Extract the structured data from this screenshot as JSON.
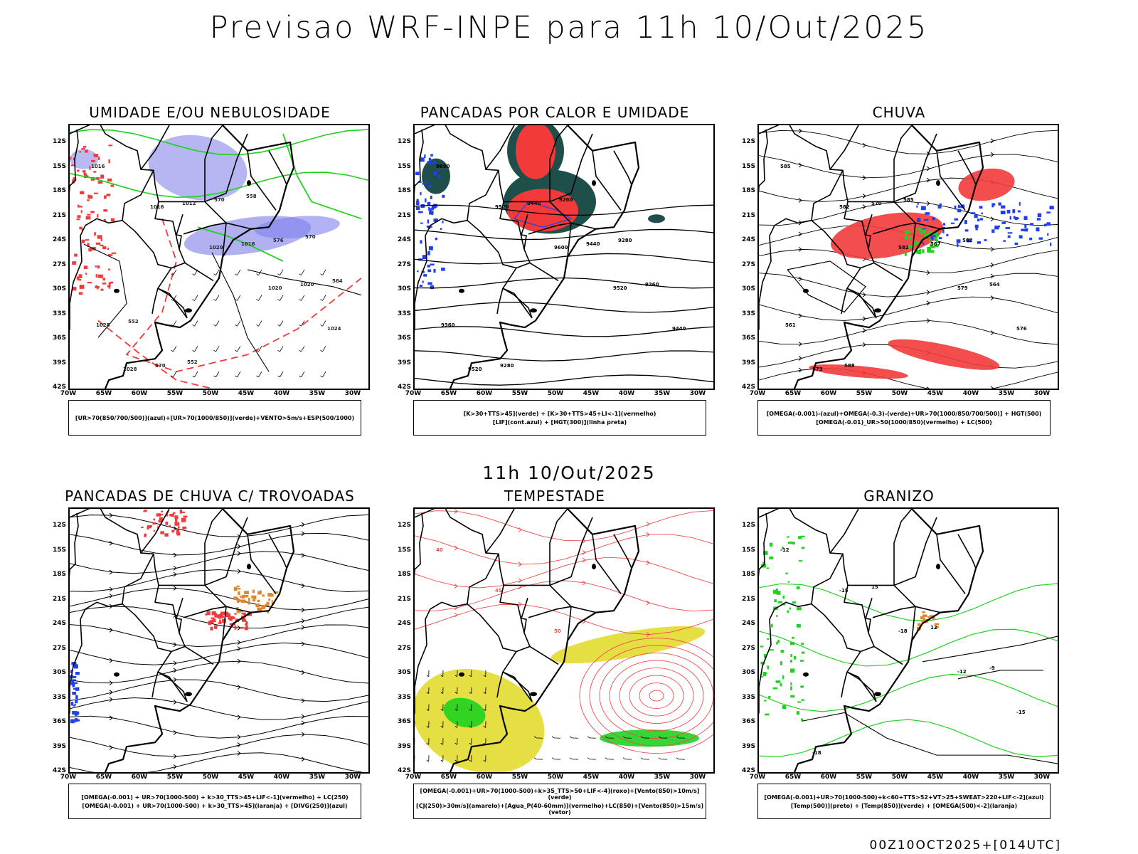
{
  "page": {
    "title": "Previsao WRF-INPE  para 11h 10/Out/2025",
    "mid_label": "11h 10/Out/2025",
    "footer": "00Z10OCT2025+[014UTC]"
  },
  "axes": {
    "lat_ticks": [
      "12S",
      "15S",
      "18S",
      "21S",
      "24S",
      "27S",
      "30S",
      "33S",
      "36S",
      "39S",
      "42S"
    ],
    "lon_ticks": [
      "70W",
      "65W",
      "60W",
      "55W",
      "50W",
      "45W",
      "40W",
      "35W",
      "30W"
    ]
  },
  "colors": {
    "humidity_blue": "#a9a9f0",
    "rain_red": "#f23a3a",
    "green": "#1fd21f",
    "dark_teal": "#1f4f4a",
    "yellow": "#e5dd3a",
    "orange": "#e3862a",
    "blue": "#1f3ff0"
  },
  "panels": [
    {
      "title": "UMIDADE E/OU NEBULOSIDADE",
      "legend": [
        "[UR>70(850/700/500)](azul)+[UR>70(1000/850)](verde)+VENTO>5m/s+ESP(500/1000)"
      ],
      "contour_labels": [
        "1016",
        "1016",
        "1020",
        "1020",
        "1024",
        "1028",
        "1012",
        "1016",
        "1020",
        "1028",
        "570",
        "570",
        "576",
        "564",
        "552",
        "552",
        "558",
        "570"
      ]
    },
    {
      "title": "PANCADAS POR CALOR E UMIDADE",
      "legend": [
        "[K>30+TTS>45](verde) + [K>30+TTS>45+LI<-1](vermelho)",
        "[LIF](cont.azul) + [HGT(300)](linha preta)"
      ],
      "contour_labels": [
        "9600",
        "9520",
        "9600",
        "9520",
        "9440",
        "9520",
        "9440",
        "9440",
        "9360",
        "9360",
        "9280",
        "9200",
        "9280"
      ]
    },
    {
      "title": "CHUVA",
      "legend": [
        "[OMEGA(-0.001)-(azul)+OMEGA(-0.3)-(verde)+UR>70(1000/850/700/500)] + HGT(500)",
        "[OMEGA(-0.01)_UR>50(1000/850)(vermelho) + LC(500)"
      ],
      "contour_labels": [
        "585",
        "582",
        "582",
        "579",
        "576",
        "573",
        "570",
        "567",
        "564",
        "561",
        "588",
        "585",
        "582"
      ]
    },
    {
      "title": "PANCADAS DE CHUVA C/ TROVOADAS",
      "legend": [
        "[OMEGA(-0.001) + UR>70(1000-500) + k>30_TTS>45+LIF<-1](vermelho) + LC(250)",
        "[OMEGA(-0.001) + UR>70(1000-500) + k>30_TTS>45](laranja) + [DIVG(250)](azul)"
      ],
      "contour_labels": []
    },
    {
      "title": "TEMPESTADE",
      "legend": [
        "[OMEGA(-0.001)+UR>70(1000-500)+k>35_TTS>50+LIF<-4](roxo)+[Vento(850)>10m/s](verde)",
        "[CJ(250)>30m/s](amarelo)+[Agua_P(40-60mm)](vermelho)+LC(850)+[Vento(850)>15m/s](vetor)"
      ],
      "contour_labels": [
        "40",
        "45",
        "50"
      ]
    },
    {
      "title": "GRANIZO",
      "legend": [
        "[OMEGA(-0.001)+UR>70(1000-500)+k<60+TTS>52+VT>25+SWEAT>220+LIF<-2](azul)",
        "[Temp(500)](preto) + [Temp(850)](verde) + [OMEGA(500)<-2](laranja)"
      ],
      "contour_labels": [
        "-12",
        "-15",
        "-18",
        "-12",
        "-15",
        "-18",
        "15",
        "12",
        "-9"
      ]
    }
  ]
}
